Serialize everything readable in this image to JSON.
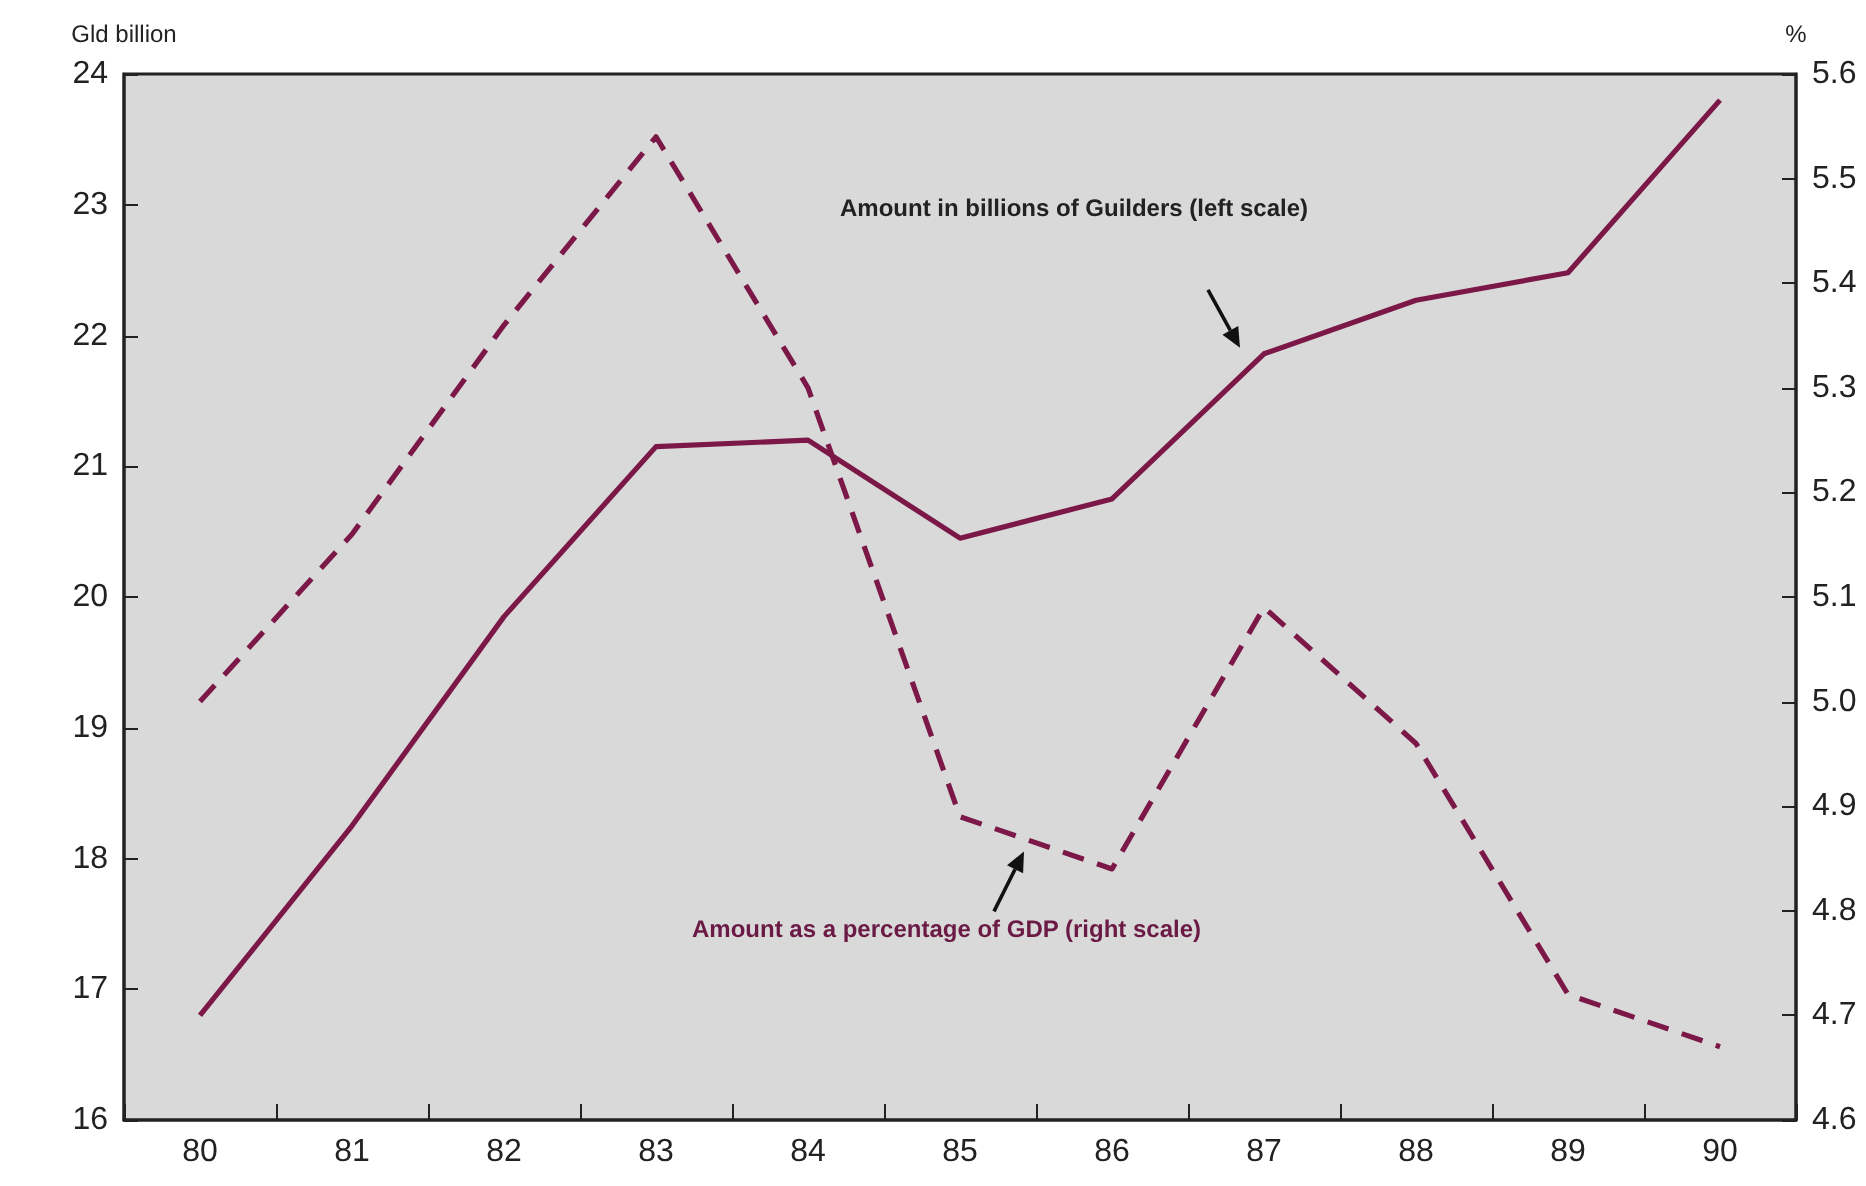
{
  "chart_data": {
    "type": "line",
    "categories": [
      "80",
      "81",
      "82",
      "83",
      "84",
      "85",
      "86",
      "87",
      "88",
      "89",
      "90"
    ],
    "series": [
      {
        "name": null,
        "color": "#7b1848",
        "line_style": "solid",
        "values": [
          16.8,
          18.25,
          19.85,
          21.15,
          21.2,
          20.45,
          20.75,
          21.86,
          22.27,
          22.48,
          23.8
        ]
      },
      {
        "name": null,
        "color": "#7b1848",
        "line_style": "dashed",
        "axis": "y2",
        "values": [
          5.0,
          5.16,
          5.36,
          5.54,
          5.3,
          4.89,
          4.84,
          5.09,
          4.96,
          4.72,
          4.67
        ]
      }
    ],
    "ylabel": "Gld billion",
    "y2label": "%",
    "ylim": [
      16,
      24
    ],
    "yticks": [
      16,
      17,
      18,
      19,
      20,
      21,
      22,
      23,
      24
    ],
    "y2lim": [
      4.6,
      5.6
    ],
    "y2ticks": [
      {
        "value": 4.6,
        "label": "4.6"
      },
      {
        "value": 4.7,
        "label": "4.7"
      },
      {
        "value": 4.8,
        "label": "4.8"
      },
      {
        "value": 4.9,
        "label": "4.9"
      },
      {
        "value": 5.0,
        "label": "5.0"
      },
      {
        "value": 5.1,
        "label": "5.1"
      },
      {
        "value": 5.2,
        "label": "5.2"
      },
      {
        "value": 5.3,
        "label": "5.3"
      },
      {
        "value": 5.4,
        "label": "5.4"
      },
      {
        "value": 5.5,
        "label": "5.5"
      },
      {
        "value": 5.6,
        "label": "5.6"
      }
    ],
    "annotations": [
      "Amount in billions of Guilders (left scale)",
      "Amount as a percentage of GDP (right scale)"
    ],
    "grid": false,
    "marker": "none"
  }
}
